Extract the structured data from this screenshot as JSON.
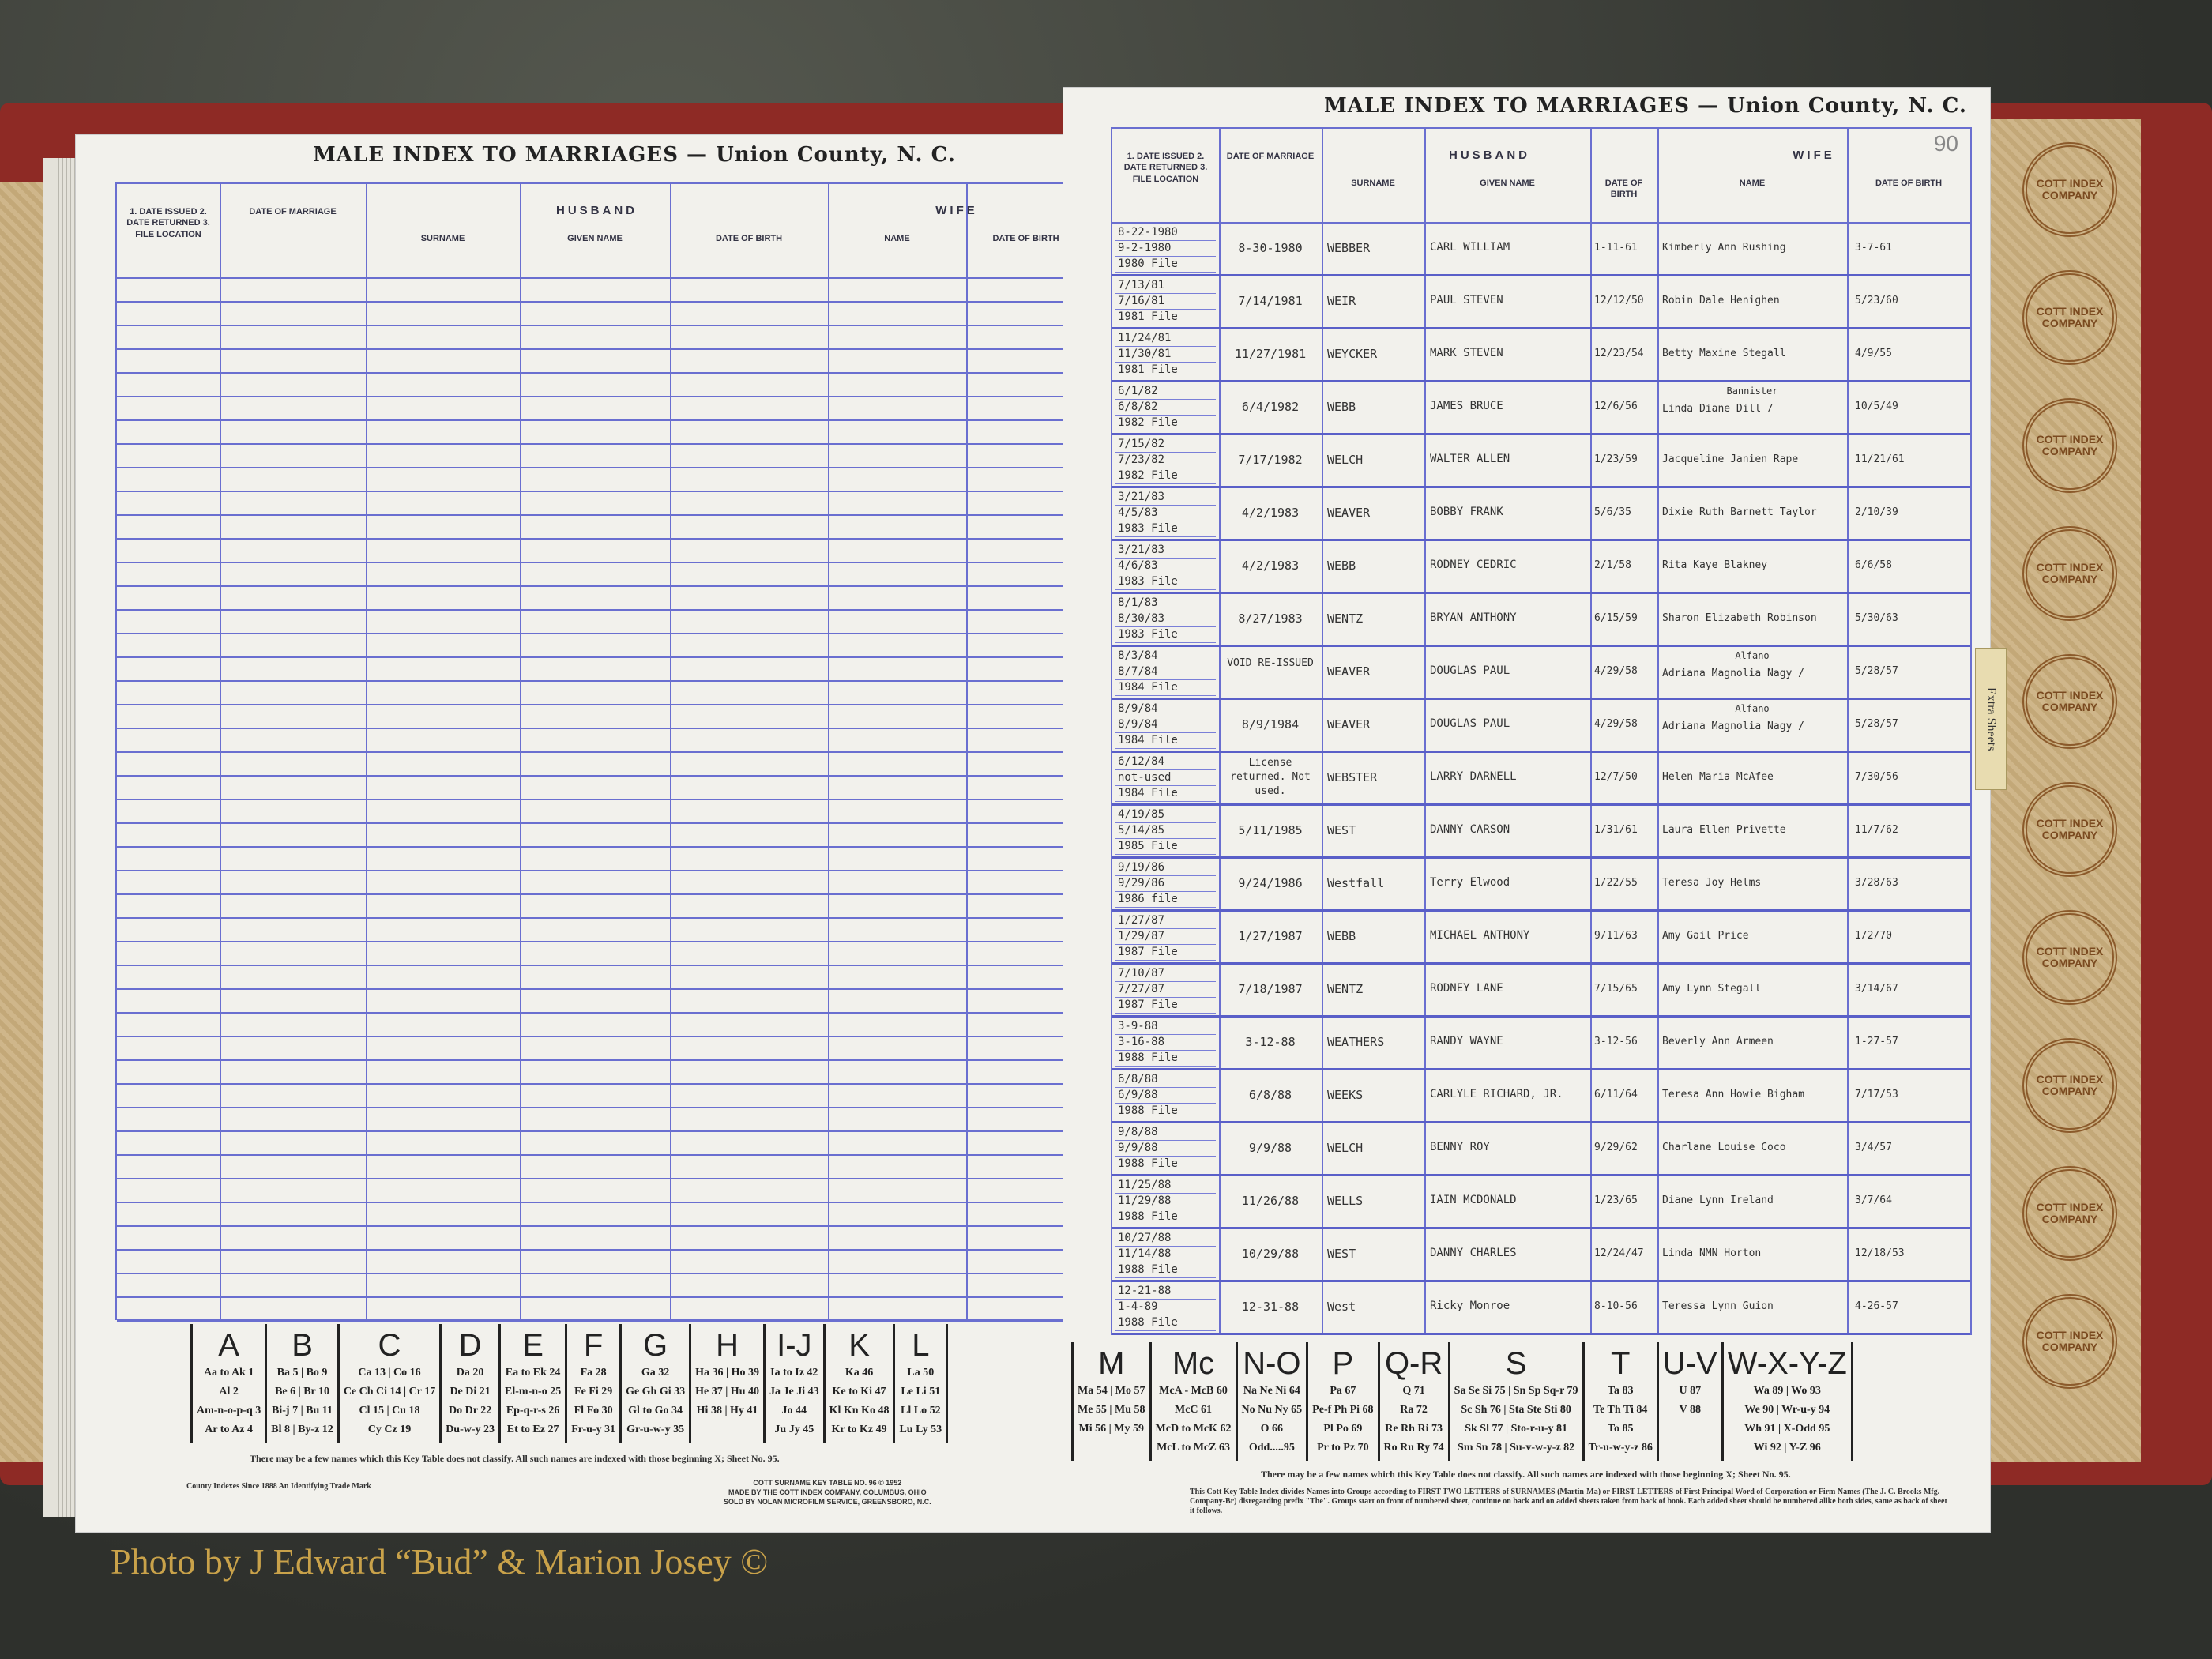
{
  "photo_credit": "Photo by J Edward “Bud” & Marion Josey ©",
  "tab_label": "Extra Sheets",
  "stamp_text": "COTT INDEX COMPANY",
  "left_page": {
    "title": "MALE INDEX TO MARRIAGES — Union County, N. C.",
    "headers": {
      "file": "1. DATE ISSUED 2. DATE RETURNED 3. FILE LOCATION",
      "date_of_marriage": "DATE OF MARRIAGE",
      "husband": "HUSBAND",
      "surname": "SURNAME",
      "given_name": "GIVEN NAME",
      "husband_dob": "DATE OF BIRTH",
      "wife": "WIFE",
      "wife_name": "NAME",
      "wife_dob": "DATE OF BIRTH"
    },
    "key_note": "There may be a few names which this Key Table does not classify.   All such names are indexed with those beginning X; Sheet No. 95.",
    "trademark": "County Indexes Since 1888 An Identifying Trade Mark",
    "imprint": [
      "COTT SURNAME KEY TABLE NO. 96 © 1952",
      "MADE BY THE COTT INDEX COMPANY, COLUMBUS, OHIO",
      "SOLD BY NOLAN MICROFILM SERVICE, GREENSBORO, N.C."
    ],
    "key": [
      {
        "letter": "A",
        "entries": [
          "Aa to Ak 1",
          "Al 2",
          "Am-n-o-p-q 3",
          "Ar to Az 4"
        ]
      },
      {
        "letter": "B",
        "entries": [
          "Ba 5 | Bo 9",
          "Be 6 | Br 10",
          "Bi-j 7 | Bu 11",
          "Bl 8 | By-z 12"
        ]
      },
      {
        "letter": "C",
        "entries": [
          "Ca 13 | Co 16",
          "Ce Ch Ci 14 | Cr 17",
          "Cl 15 | Cu 18",
          "Cy Cz 19"
        ]
      },
      {
        "letter": "D",
        "entries": [
          "Da 20",
          "De Di 21",
          "Do Dr 22",
          "Du-w-y 23"
        ]
      },
      {
        "letter": "E",
        "entries": [
          "Ea to Ek 24",
          "El-m-n-o 25",
          "Ep-q-r-s 26",
          "Et to Ez 27"
        ]
      },
      {
        "letter": "F",
        "entries": [
          "Fa 28",
          "Fe Fi 29",
          "Fl Fo 30",
          "Fr-u-y 31"
        ]
      },
      {
        "letter": "G",
        "entries": [
          "Ga 32",
          "Ge Gh Gi 33",
          "Gl to Go 34",
          "Gr-u-w-y 35"
        ]
      },
      {
        "letter": "H",
        "entries": [
          "Ha 36 | Ho 39",
          "He 37 | Hu 40",
          "Hi 38 | Hy 41"
        ]
      },
      {
        "letter": "I-J",
        "entries": [
          "Ia to Iz 42",
          "Ja Je Ji 43",
          "Jo 44",
          "Ju Jy 45"
        ]
      },
      {
        "letter": "K",
        "entries": [
          "Ka 46",
          "Ke to Ki 47",
          "Kl Kn Ko 48",
          "Kr to Kz 49"
        ]
      },
      {
        "letter": "L",
        "entries": [
          "La 50",
          "Le Li 51",
          "Ll Lo 52",
          "Lu Ly 53"
        ]
      }
    ]
  },
  "right_page": {
    "title": "MALE INDEX TO MARRIAGES — Union County, N. C.",
    "sheet_number": "90",
    "headers": {
      "file": "1. DATE ISSUED 2. DATE RETURNED 3. FILE LOCATION",
      "date_of_marriage": "DATE OF MARRIAGE",
      "husband": "HUSBAND",
      "surname": "SURNAME",
      "given_name": "GIVEN NAME",
      "husband_dob": "DATE OF BIRTH",
      "wife": "WIFE",
      "wife_name": "NAME",
      "wife_dob": "DATE OF BIRTH"
    },
    "rows": [
      {
        "file": [
          "8-22-1980",
          "9-2-1980",
          "1980 File"
        ],
        "married": "8-30-1980",
        "surname": "WEBBER",
        "given": "CARL WILLIAM",
        "hdob": "1-11-61",
        "wife": "Kimberly Ann Rushing",
        "wdob": "3-7-61"
      },
      {
        "file": [
          "7/13/81",
          "7/16/81",
          "1981 File"
        ],
        "married": "7/14/1981",
        "surname": "WEIR",
        "given": "PAUL STEVEN",
        "hdob": "12/12/50",
        "wife": "Robin Dale Henighen",
        "wdob": "5/23/60"
      },
      {
        "file": [
          "11/24/81",
          "11/30/81",
          "1981 File"
        ],
        "married": "11/27/1981",
        "surname": "WEYCKER",
        "given": "MARK STEVEN",
        "hdob": "12/23/54",
        "wife": "Betty Maxine Stegall",
        "wdob": "4/9/55"
      },
      {
        "file": [
          "6/1/82",
          "6/8/82",
          "1982 File"
        ],
        "married": "6/4/1982",
        "surname": "WEBB",
        "given": "JAMES BRUCE",
        "hdob": "12/6/56",
        "wife": "Linda Diane Dill /",
        "wife_note": "Bannister",
        "wdob": "10/5/49"
      },
      {
        "file": [
          "7/15/82",
          "7/23/82",
          "1982 File"
        ],
        "married": "7/17/1982",
        "surname": "WELCH",
        "given": "WALTER ALLEN",
        "hdob": "1/23/59",
        "wife": "Jacqueline Janien Rape",
        "wdob": "11/21/61"
      },
      {
        "file": [
          "3/21/83",
          "4/5/83",
          "1983 File"
        ],
        "married": "4/2/1983",
        "surname": "WEAVER",
        "given": "BOBBY FRANK",
        "hdob": "5/6/35",
        "wife": "Dixie Ruth Barnett Taylor",
        "wdob": "2/10/39"
      },
      {
        "file": [
          "3/21/83",
          "4/6/83",
          "1983 File"
        ],
        "married": "4/2/1983",
        "surname": "WEBB",
        "given": "RODNEY CEDRIC",
        "hdob": "2/1/58",
        "wife": "Rita Kaye Blakney",
        "wdob": "6/6/58"
      },
      {
        "file": [
          "8/1/83",
          "8/30/83",
          "1983 File"
        ],
        "married": "8/27/1983",
        "surname": "WENTZ",
        "given": "BRYAN ANTHONY",
        "hdob": "6/15/59",
        "wife": "Sharon Elizabeth Robinson",
        "wdob": "5/30/63"
      },
      {
        "file": [
          "8/3/84",
          "8/7/84",
          "1984 File"
        ],
        "married": "VOID RE-ISSUED",
        "surname": "WEAVER",
        "given": "DOUGLAS PAUL",
        "hdob": "4/29/58",
        "wife": "Adriana Magnolia Nagy /",
        "wife_note": "Alfano",
        "wdob": "5/28/57"
      },
      {
        "file": [
          "8/9/84",
          "8/9/84",
          "1984 File"
        ],
        "married": "8/9/1984",
        "surname": "WEAVER",
        "given": "DOUGLAS PAUL",
        "hdob": "4/29/58",
        "wife": "Adriana Magnolia Nagy /",
        "wife_note": "Alfano",
        "wdob": "5/28/57"
      },
      {
        "file": [
          "6/12/84",
          "not-used",
          "1984 File"
        ],
        "married": "License returned. Not used.",
        "surname": "WEBSTER",
        "given": "LARRY DARNELL",
        "hdob": "12/7/50",
        "wife": "Helen Maria McAfee",
        "wdob": "7/30/56"
      },
      {
        "file": [
          "4/19/85",
          "5/14/85",
          "1985 File"
        ],
        "married": "5/11/1985",
        "surname": "WEST",
        "given": "DANNY CARSON",
        "hdob": "1/31/61",
        "wife": "Laura Ellen Privette",
        "wdob": "11/7/62"
      },
      {
        "file": [
          "9/19/86",
          "9/29/86",
          "1986 file"
        ],
        "married": "9/24/1986",
        "surname": "Westfall",
        "given": "Terry Elwood",
        "hdob": "1/22/55",
        "wife": "Teresa Joy Helms",
        "wdob": "3/28/63"
      },
      {
        "file": [
          "1/27/87",
          "1/29/87",
          "1987 File"
        ],
        "married": "1/27/1987",
        "surname": "WEBB",
        "given": "MICHAEL ANTHONY",
        "hdob": "9/11/63",
        "wife": "Amy Gail Price",
        "wdob": "1/2/70"
      },
      {
        "file": [
          "7/10/87",
          "7/27/87",
          "1987 File"
        ],
        "married": "7/18/1987",
        "surname": "WENTZ",
        "given": "RODNEY LANE",
        "hdob": "7/15/65",
        "wife": "Amy Lynn Stegall",
        "wdob": "3/14/67"
      },
      {
        "file": [
          "3-9-88",
          "3-16-88",
          "1988 File"
        ],
        "married": "3-12-88",
        "surname": "WEATHERS",
        "given": "RANDY WAYNE",
        "hdob": "3-12-56",
        "wife": "Beverly Ann Armeen",
        "wdob": "1-27-57"
      },
      {
        "file": [
          "6/8/88",
          "6/9/88",
          "1988 File"
        ],
        "married": "6/8/88",
        "surname": "WEEKS",
        "given": "CARLYLE RICHARD, JR.",
        "hdob": "6/11/64",
        "wife": "Teresa Ann Howie Bigham",
        "wdob": "7/17/53"
      },
      {
        "file": [
          "9/8/88",
          "9/9/88",
          "1988 File"
        ],
        "married": "9/9/88",
        "surname": "WELCH",
        "given": "BENNY ROY",
        "hdob": "9/29/62",
        "wife": "Charlane Louise Coco",
        "wdob": "3/4/57"
      },
      {
        "file": [
          "11/25/88",
          "11/29/88",
          "1988 File"
        ],
        "married": "11/26/88",
        "surname": "WELLS",
        "given": "IAIN MCDONALD",
        "hdob": "1/23/65",
        "wife": "Diane Lynn Ireland",
        "wdob": "3/7/64"
      },
      {
        "file": [
          "10/27/88",
          "11/14/88",
          "1988 File"
        ],
        "married": "10/29/88",
        "surname": "WEST",
        "given": "DANNY CHARLES",
        "hdob": "12/24/47",
        "wife": "Linda NMN Horton",
        "wdob": "12/18/53"
      },
      {
        "file": [
          "12-21-88",
          "1-4-89",
          "1988 File"
        ],
        "married": "12-31-88",
        "surname": "West",
        "given": "Ricky Monroe",
        "hdob": "8-10-56",
        "wife": "Teressa Lynn Guion",
        "wdob": "4-26-57"
      }
    ],
    "key_note": "There may be a few names which this Key Table does not classify.   All such names are indexed with those beginning X; Sheet No. 95.",
    "footer_text": "This Cott Key Table Index divides Names into Groups according to FIRST TWO LETTERS of SURNAMES (Martin-Ma) or FIRST LETTERS of First Principal Word of Corporation or Firm Names (The J. C. Brooks Mfg. Company-Br) disregarding prefix \"The\". Groups start on front of numbered sheet, continue on back and on added sheets taken from back of book. Each added sheet should be numbered alike both sides, same as back of sheet it follows.",
    "key": [
      {
        "letter": "M",
        "entries": [
          "Ma 54 | Mo 57",
          "Me 55 | Mu 58",
          "Mi 56 | My 59"
        ]
      },
      {
        "letter": "Mc",
        "entries": [
          "McA - McB 60",
          "McC 61",
          "McD to McK 62",
          "McL to McZ 63"
        ]
      },
      {
        "letter": "N-O",
        "entries": [
          "Na Ne Ni 64",
          "No Nu Ny 65",
          "O 66",
          "Odd.....95"
        ]
      },
      {
        "letter": "P",
        "entries": [
          "Pa 67",
          "Pe-f Ph Pi 68",
          "Pl Po 69",
          "Pr to Pz 70"
        ]
      },
      {
        "letter": "Q-R",
        "entries": [
          "Q 71",
          "Ra 72",
          "Re Rh Ri 73",
          "Ro Ru Ry 74"
        ]
      },
      {
        "letter": "S",
        "entries": [
          "Sa Se Si 75 | Sn Sp Sq-r 79",
          "Sc Sh 76 | Sta Ste Sti 80",
          "Sk Sl 77 | Sto-r-u-y 81",
          "Sm Sn 78 | Su-v-w-y-z 82"
        ]
      },
      {
        "letter": "T",
        "entries": [
          "Ta 83",
          "Te Th Ti 84",
          "To 85",
          "Tr-u-w-y-z 86"
        ]
      },
      {
        "letter": "U-V",
        "entries": [
          "U 87",
          "V 88"
        ]
      },
      {
        "letter": "W-X-Y-Z",
        "entries": [
          "Wa 89 | Wo 93",
          "We 90 | Wr-u-y 94",
          "Wh 91 | X-Odd 95",
          "Wi 92 | Y-Z 96"
        ]
      }
    ]
  }
}
